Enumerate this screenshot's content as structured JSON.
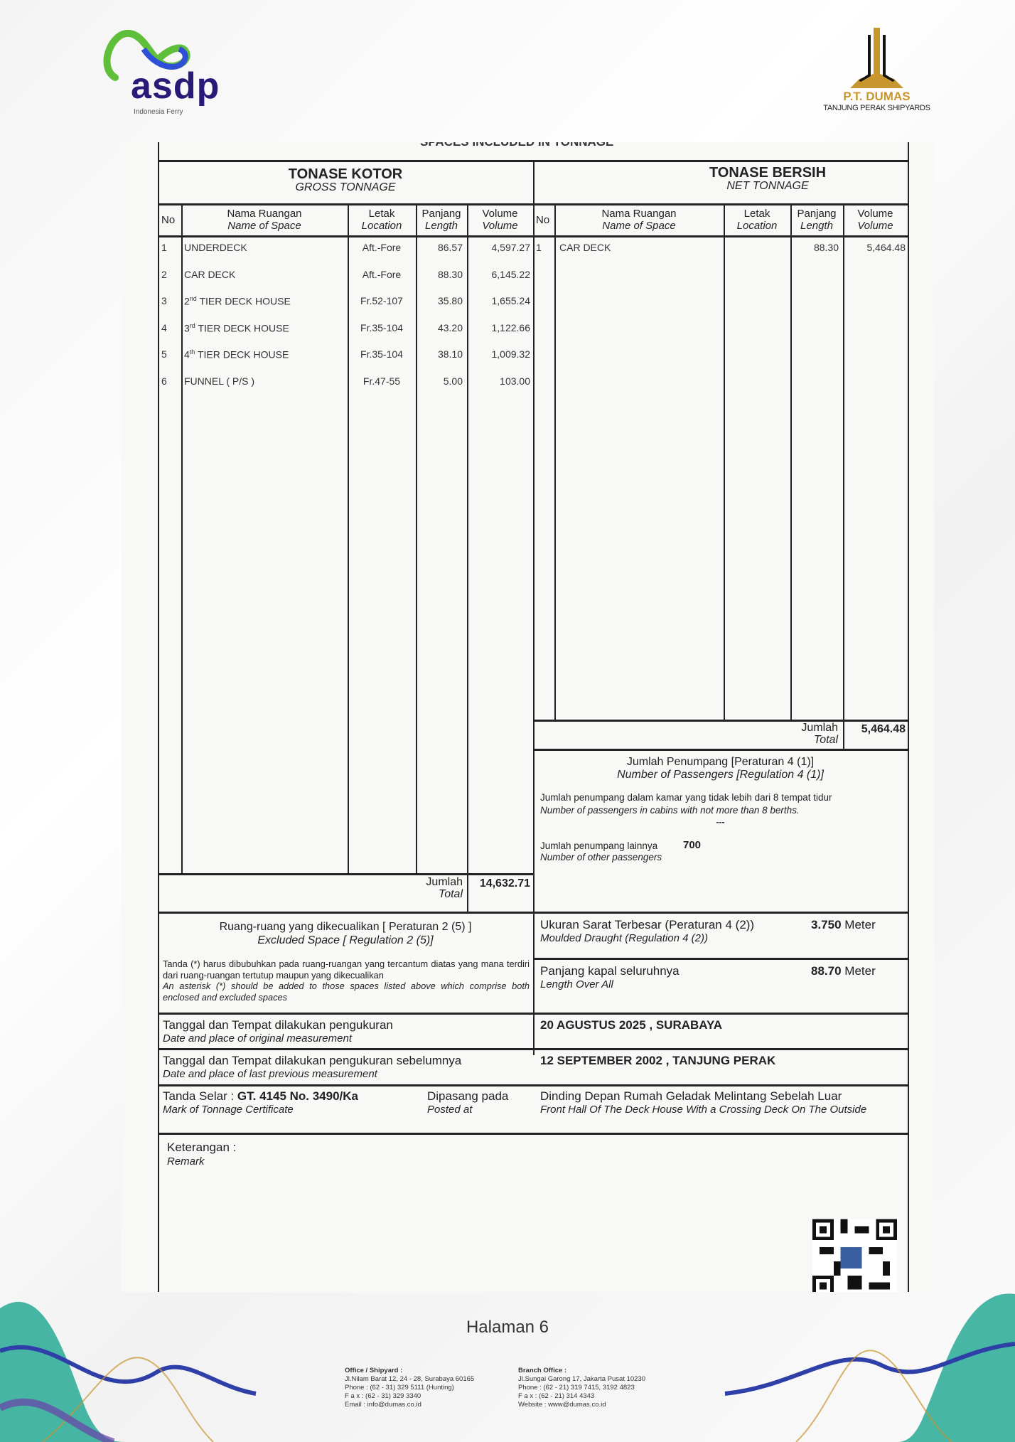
{
  "header": {
    "asdp_logo_text": "asdp",
    "asdp_tagline": "Indonesia Ferry",
    "dumas_name": "P.T. DUMAS",
    "dumas_tagline": "TANJUNG PERAK SHIPYARDS"
  },
  "doc": {
    "top_caption": "SPACES INCLUDED IN TONNAGE",
    "gross": {
      "title": "TONASE KOTOR",
      "subtitle": "GROSS TONNAGE",
      "columns": [
        {
          "id": "No",
          "en": ""
        },
        {
          "id": "Nama Ruangan",
          "en": "Name of Space"
        },
        {
          "id": "Letak",
          "en": "Location"
        },
        {
          "id": "Panjang",
          "en": "Length"
        },
        {
          "id": "Volume",
          "en": "Volume"
        }
      ],
      "rows": [
        {
          "no": "1",
          "name": "UNDERDECK",
          "sup": "",
          "location": "Aft.-Fore",
          "length": "86.57",
          "volume": "4,597.27"
        },
        {
          "no": "2",
          "name": "CAR DECK",
          "sup": "",
          "location": "Aft.-Fore",
          "length": "88.30",
          "volume": "6,145.22"
        },
        {
          "no": "3",
          "name": "2",
          "sup": "nd",
          "rest": " TIER DECK HOUSE",
          "location": "Fr.52-107",
          "length": "35.80",
          "volume": "1,655.24"
        },
        {
          "no": "4",
          "name": "3",
          "sup": "rd",
          "rest": " TIER DECK HOUSE",
          "location": "Fr.35-104",
          "length": "43.20",
          "volume": "1,122.66"
        },
        {
          "no": "5",
          "name": "4",
          "sup": "th",
          "rest": " TIER DECK HOUSE",
          "location": "Fr.35-104",
          "length": "38.10",
          "volume": "1,009.32"
        },
        {
          "no": "6",
          "name": "FUNNEL ( P/S )",
          "sup": "",
          "location": "Fr.47-55",
          "length": "5.00",
          "volume": "103.00"
        }
      ],
      "total_label": "Jumlah",
      "total_label_en": "Total",
      "total": "14,632.71"
    },
    "net": {
      "title": "TONASE BERSIH",
      "subtitle": "NET TONNAGE",
      "rows": [
        {
          "no": "1",
          "name": "CAR DECK",
          "location": "",
          "length": "88.30",
          "volume": "5,464.48"
        }
      ],
      "total_label": "Jumlah",
      "total_label_en": "Total",
      "total": "5,464.48"
    },
    "passengers": {
      "title": "Jumlah Penumpang [Peraturan 4 (1)]",
      "title_en": "Number of Passengers [Regulation 4 (1)]",
      "cabins_label": "Jumlah penumpang dalam kamar yang tidak lebih dari 8 tempat tidur",
      "cabins_label_en": "Number of passengers in cabins with not more than 8 berths.",
      "cabins_value": "---",
      "other_label": "Jumlah penumpang lainnya",
      "other_label_en": "Number of other passengers",
      "other_value": "700"
    },
    "excluded": {
      "title": "Ruang-ruang yang dikecualikan [ Peraturan 2 (5) ]",
      "title_en": "Excluded Space [ Regulation 2 (5)]",
      "note": "Tanda (*) harus dibubuhkan pada ruang-ruangan yang tercantum diatas yang mana terdiri dari ruang-ruangan tertutup maupun yang dikecualikan",
      "note_en": "An asterisk (*) should be added to those spaces listed above which comprise both enclosed and excluded spaces"
    },
    "draught": {
      "label": "Ukuran Sarat Terbesar (Peraturan 4 (2))",
      "label_en": "Moulded Draught (Regulation 4 (2))",
      "value": "3.750",
      "unit": "Meter"
    },
    "loa": {
      "label": "Panjang kapal seluruhnya",
      "label_en": "Length Over All",
      "value": "88.70",
      "unit": "Meter"
    },
    "orig_measure": {
      "label": "Tanggal dan Tempat dilakukan pengukuran",
      "label_en": "Date and place of original measurement",
      "value": "20 AGUSTUS 2025 , SURABAYA"
    },
    "prev_measure": {
      "label": "Tanggal dan Tempat dilakukan pengukuran sebelumnya",
      "label_en": "Date and place of last previous measurement",
      "value": "12 SEPTEMBER 2002 , TANJUNG PERAK"
    },
    "mark": {
      "label": "Tanda Selar : ",
      "value": "GT. 4145 No. 3490/Ka",
      "label_en": "Mark of Tonnage Certificate",
      "posted_label": "Dipasang pada",
      "posted_label_en": "Posted at",
      "posted_value": "Dinding Depan Rumah Geladak Melintang Sebelah Luar",
      "posted_value_en": "Front Hall Of The Deck House With a Crossing Deck On The Outside"
    },
    "remark": {
      "label": "Keterangan :",
      "label_en": "Remark"
    }
  },
  "page_label": "Halaman 6",
  "footer": {
    "office": {
      "title": "Office / Shipyard :",
      "address": "Jl.Nilam Barat 12, 24 - 28, Surabaya 60165",
      "phone": "Phone  : (62 - 31) 329 5111 (Hunting)",
      "fax": "F a x   : (62 - 31) 329 3340",
      "email": "Email   : info@dumas.co.id"
    },
    "branch": {
      "title": "Branch Office :",
      "address": "Jl.Sungai Garong 17, Jakarta Pusat 10230",
      "phone": "Phone    : (62 - 21) 319 7415, 3192 4823",
      "fax": "F a x      : (62 - 21) 314 4343",
      "website": "Website : www@dumas.co.id"
    }
  },
  "colors": {
    "asdp_navy": "#2a1a78",
    "asdp_green": "#5fbf3a",
    "dumas_gold": "#c8962e",
    "wave_teal": "#1aa58f",
    "wave_blue": "#2f3fa8"
  }
}
